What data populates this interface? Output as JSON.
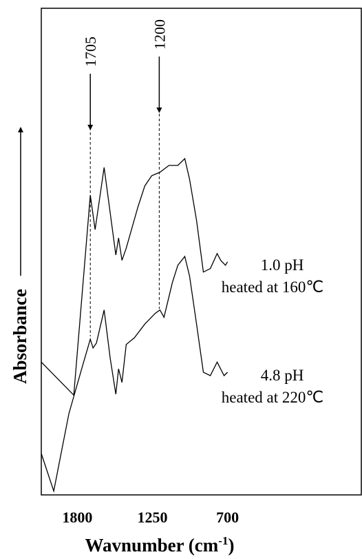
{
  "chart_data": {
    "type": "line",
    "x_label": {
      "text": "Wavnumber (cm",
      "sup": "-1",
      "end": ")"
    },
    "y_label": "Absorbance",
    "xlim": [
      2064,
      -280
    ],
    "ylim": [
      0,
      100
    ],
    "xticks": [
      1800,
      1250,
      700
    ],
    "markers": [
      {
        "x": 1705
      },
      {
        "x": 1200
      }
    ],
    "series": [
      {
        "name": "1.0 pH",
        "detail": "heated at 160℃",
        "color": "#000000",
        "x": [
          2064,
          1826,
          1705,
          1670,
          1604,
          1518,
          1498,
          1473,
          1442,
          1356,
          1306,
          1255,
          1195,
          1129,
          1064,
          1013,
          978,
          927,
          877,
          826,
          776,
          750,
          715,
          700
        ],
        "values": [
          27.3,
          20.5,
          61.6,
          54.5,
          67.3,
          49.3,
          52.8,
          48.2,
          50.7,
          59.2,
          63.5,
          65.6,
          66.3,
          67.7,
          67.7,
          69.1,
          64.9,
          56.4,
          45.8,
          46.5,
          49.6,
          48.2,
          47.2,
          47.9
        ]
      },
      {
        "name": "4.8 pH",
        "detail": "heated at 220℃",
        "color": "#000000",
        "x": [
          2064,
          1973,
          1862,
          1761,
          1705,
          1685,
          1660,
          1604,
          1559,
          1518,
          1498,
          1473,
          1442,
          1382,
          1306,
          1230,
          1195,
          1165,
          1104,
          1064,
          1013,
          978,
          927,
          877,
          826,
          776,
          725,
          700
        ],
        "values": [
          8.5,
          0.8,
          16.7,
          26.6,
          32.0,
          30.2,
          31.2,
          38.0,
          28.0,
          20.7,
          25.9,
          23.1,
          30.9,
          32.3,
          35.1,
          37.3,
          38.0,
          36.5,
          43.6,
          47.2,
          49.0,
          45.0,
          35.1,
          25.2,
          24.5,
          27.3,
          24.5,
          25.2
        ]
      }
    ]
  }
}
